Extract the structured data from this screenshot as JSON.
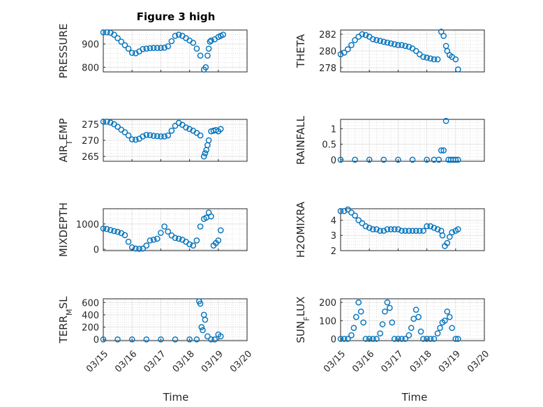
{
  "figure": {
    "title": "Figure 3 high",
    "xlabel": "Time",
    "marker_color": "#0072bd"
  },
  "chart_data": [
    {
      "type": "scatter",
      "ylabel": "PRESSURE",
      "xlim": [
        "03/15",
        "03/20"
      ],
      "ylim": [
        780,
        960
      ],
      "yticks": [
        800,
        900
      ],
      "x": [
        "03/15 00:00",
        "03/15 03:00",
        "03/15 06:00",
        "03/15 09:00",
        "03/15 12:00",
        "03/15 15:00",
        "03/15 18:00",
        "03/15 21:00",
        "03/16 00:00",
        "03/16 03:00",
        "03/16 06:00",
        "03/16 09:00",
        "03/16 12:00",
        "03/16 15:00",
        "03/16 18:00",
        "03/16 21:00",
        "03/17 00:00",
        "03/17 03:00",
        "03/17 06:00",
        "03/17 09:00",
        "03/17 12:00",
        "03/17 15:00",
        "03/17 18:00",
        "03/17 21:00",
        "03/18 00:00",
        "03/18 03:00",
        "03/18 06:00",
        "03/18 09:00",
        "03/18 12:00",
        "03/18 13:30",
        "03/18 15:00",
        "03/18 16:00",
        "03/18 17:00",
        "03/18 18:00",
        "03/18 21:00",
        "03/19 00:00",
        "03/19 02:00",
        "03/19 04:00"
      ],
      "y": [
        950,
        950,
        948,
        940,
        925,
        910,
        895,
        880,
        862,
        860,
        868,
        878,
        880,
        882,
        883,
        883,
        883,
        884,
        890,
        912,
        935,
        940,
        935,
        925,
        915,
        905,
        880,
        850,
        790,
        800,
        850,
        880,
        910,
        915,
        920,
        930,
        935,
        940
      ]
    },
    {
      "type": "scatter",
      "ylabel": "THETA",
      "xlim": [
        "03/15",
        "03/20"
      ],
      "ylim": [
        277.5,
        282.5
      ],
      "yticks": [
        278,
        280,
        282
      ],
      "x": [
        "03/15 00:00",
        "03/15 03:00",
        "03/15 06:00",
        "03/15 09:00",
        "03/15 12:00",
        "03/15 15:00",
        "03/15 18:00",
        "03/15 21:00",
        "03/16 00:00",
        "03/16 03:00",
        "03/16 06:00",
        "03/16 09:00",
        "03/16 12:00",
        "03/16 15:00",
        "03/16 18:00",
        "03/16 21:00",
        "03/17 00:00",
        "03/17 03:00",
        "03/17 06:00",
        "03/17 09:00",
        "03/17 12:00",
        "03/17 15:00",
        "03/17 18:00",
        "03/17 21:00",
        "03/18 00:00",
        "03/18 03:00",
        "03/18 06:00",
        "03/18 09:00",
        "03/18 12:00",
        "03/18 14:00",
        "03/18 16:00",
        "03/18 17:00",
        "03/18 19:00",
        "03/18 21:00",
        "03/19 00:00",
        "03/19 02:00"
      ],
      "y": [
        279.6,
        279.8,
        280.2,
        280.7,
        281.3,
        281.7,
        282.0,
        281.9,
        281.7,
        281.4,
        281.3,
        281.2,
        281.1,
        281.0,
        280.9,
        280.8,
        280.7,
        280.7,
        280.6,
        280.5,
        280.3,
        280.0,
        279.6,
        279.3,
        279.2,
        279.1,
        279.0,
        279.0,
        282.3,
        281.8,
        280.6,
        280.0,
        279.5,
        279.3,
        279.0,
        277.8
      ]
    },
    {
      "type": "scatter",
      "ylabel": "AIR_TEMP",
      "xlim": [
        "03/15",
        "03/20"
      ],
      "ylim": [
        263.5,
        276.5
      ],
      "yticks": [
        265,
        270,
        275
      ],
      "x": [
        "03/15 00:00",
        "03/15 03:00",
        "03/15 06:00",
        "03/15 09:00",
        "03/15 12:00",
        "03/15 15:00",
        "03/15 18:00",
        "03/15 21:00",
        "03/16 00:00",
        "03/16 03:00",
        "03/16 06:00",
        "03/16 09:00",
        "03/16 12:00",
        "03/16 15:00",
        "03/16 18:00",
        "03/16 21:00",
        "03/17 00:00",
        "03/17 03:00",
        "03/17 06:00",
        "03/17 09:00",
        "03/17 12:00",
        "03/17 15:00",
        "03/17 18:00",
        "03/17 21:00",
        "03/18 00:00",
        "03/18 03:00",
        "03/18 06:00",
        "03/18 09:00",
        "03/18 12:00",
        "03/18 13:00",
        "03/18 14:00",
        "03/18 15:00",
        "03/18 16:00",
        "03/18 18:00",
        "03/18 20:00",
        "03/18 22:00",
        "03/19 00:00",
        "03/19 02:00"
      ],
      "y": [
        275.8,
        275.8,
        275.5,
        275.0,
        274.2,
        273.3,
        272.5,
        271.5,
        270.3,
        270.2,
        270.5,
        271.2,
        271.7,
        271.6,
        271.4,
        271.3,
        271.2,
        271.2,
        271.5,
        273.0,
        274.5,
        275.4,
        274.8,
        274.0,
        273.5,
        273.0,
        272.3,
        271.5,
        265.0,
        266.0,
        267.0,
        268.5,
        270.0,
        272.8,
        273.0,
        273.2,
        272.8,
        273.5
      ]
    },
    {
      "type": "scatter",
      "ylabel": "RAINFALL",
      "xlim": [
        "03/15",
        "03/20"
      ],
      "ylim": [
        -0.05,
        1.3
      ],
      "yticks": [
        0,
        0.5,
        1
      ],
      "x": [
        "03/15 00:00",
        "03/15 12:00",
        "03/16 00:00",
        "03/16 12:00",
        "03/17 00:00",
        "03/17 12:00",
        "03/18 00:00",
        "03/18 06:00",
        "03/18 10:00",
        "03/18 12:00",
        "03/18 14:00",
        "03/18 16:00",
        "03/18 18:00",
        "03/18 20:00",
        "03/18 22:00",
        "03/19 00:00",
        "03/19 02:00"
      ],
      "y": [
        0,
        0,
        0,
        0,
        0,
        0,
        0,
        0,
        0,
        0.3,
        0.3,
        1.25,
        0,
        0,
        0,
        0,
        0
      ]
    },
    {
      "type": "scatter",
      "ylabel": "MIXDEPTH",
      "xlim": [
        "03/15",
        "03/20"
      ],
      "ylim": [
        -50,
        1600
      ],
      "yticks": [
        0,
        1000
      ],
      "x": [
        "03/15 00:00",
        "03/15 03:00",
        "03/15 06:00",
        "03/15 09:00",
        "03/15 12:00",
        "03/15 15:00",
        "03/15 18:00",
        "03/15 21:00",
        "03/16 00:00",
        "03/16 03:00",
        "03/16 06:00",
        "03/16 09:00",
        "03/16 12:00",
        "03/16 15:00",
        "03/16 18:00",
        "03/16 21:00",
        "03/17 00:00",
        "03/17 03:00",
        "03/17 06:00",
        "03/17 09:00",
        "03/17 12:00",
        "03/17 15:00",
        "03/17 18:00",
        "03/17 21:00",
        "03/18 00:00",
        "03/18 03:00",
        "03/18 06:00",
        "03/18 09:00",
        "03/18 12:00",
        "03/18 14:00",
        "03/18 16:00",
        "03/18 18:00",
        "03/18 20:00",
        "03/18 22:00",
        "03/19 00:00",
        "03/19 02:00"
      ],
      "y": [
        820,
        800,
        760,
        720,
        690,
        640,
        560,
        300,
        80,
        30,
        20,
        30,
        150,
        350,
        380,
        420,
        650,
        900,
        700,
        550,
        450,
        420,
        380,
        300,
        200,
        150,
        350,
        900,
        1200,
        1250,
        1450,
        1300,
        150,
        250,
        350,
        750
      ]
    },
    {
      "type": "scatter",
      "ylabel": "H2OMIXRA",
      "xlim": [
        "03/15",
        "03/20"
      ],
      "ylim": [
        2,
        4.75
      ],
      "yticks": [
        2,
        3,
        4
      ],
      "x": [
        "03/15 00:00",
        "03/15 03:00",
        "03/15 06:00",
        "03/15 09:00",
        "03/15 12:00",
        "03/15 15:00",
        "03/15 18:00",
        "03/15 21:00",
        "03/16 00:00",
        "03/16 03:00",
        "03/16 06:00",
        "03/16 09:00",
        "03/16 12:00",
        "03/16 15:00",
        "03/16 18:00",
        "03/16 21:00",
        "03/17 00:00",
        "03/17 03:00",
        "03/17 06:00",
        "03/17 09:00",
        "03/17 12:00",
        "03/17 15:00",
        "03/17 18:00",
        "03/17 21:00",
        "03/18 00:00",
        "03/18 03:00",
        "03/18 06:00",
        "03/18 09:00",
        "03/18 12:00",
        "03/18 13:00",
        "03/18 15:00",
        "03/18 17:00",
        "03/18 19:00",
        "03/18 21:00",
        "03/19 00:00",
        "03/19 02:00"
      ],
      "y": [
        4.6,
        4.6,
        4.7,
        4.5,
        4.3,
        4.0,
        3.8,
        3.6,
        3.5,
        3.4,
        3.4,
        3.3,
        3.3,
        3.4,
        3.4,
        3.4,
        3.4,
        3.3,
        3.3,
        3.3,
        3.3,
        3.3,
        3.3,
        3.3,
        3.6,
        3.6,
        3.5,
        3.4,
        3.3,
        3.0,
        2.3,
        2.5,
        2.9,
        3.2,
        3.3,
        3.4
      ]
    },
    {
      "type": "scatter",
      "ylabel": "TERR_MSL",
      "xlim": [
        "03/15",
        "03/20"
      ],
      "ylim": [
        -20,
        660
      ],
      "yticks": [
        0,
        200,
        400,
        600
      ],
      "x": [
        "03/15 00:00",
        "03/15 12:00",
        "03/16 00:00",
        "03/16 12:00",
        "03/17 00:00",
        "03/17 12:00",
        "03/18 00:00",
        "03/18 06:00",
        "03/18 08:00",
        "03/18 09:00",
        "03/18 10:00",
        "03/18 11:00",
        "03/18 12:00",
        "03/18 13:00",
        "03/18 15:00",
        "03/18 18:00",
        "03/18 21:00",
        "03/19 00:00",
        "03/19 02:00"
      ],
      "y": [
        0,
        0,
        0,
        0,
        0,
        0,
        0,
        0,
        620,
        580,
        200,
        150,
        400,
        320,
        50,
        0,
        0,
        80,
        50
      ]
    },
    {
      "type": "scatter",
      "ylabel": "SUN_FLUX",
      "xlim": [
        "03/15",
        "03/20"
      ],
      "ylim": [
        -10,
        220
      ],
      "yticks": [
        0,
        100,
        200
      ],
      "x": [
        "03/15 00:00",
        "03/15 03:00",
        "03/15 06:00",
        "03/15 09:00",
        "03/15 11:00",
        "03/15 13:00",
        "03/15 15:00",
        "03/15 17:00",
        "03/15 19:00",
        "03/15 21:00",
        "03/16 00:00",
        "03/16 03:00",
        "03/16 06:00",
        "03/16 09:00",
        "03/16 11:00",
        "03/16 13:00",
        "03/16 15:00",
        "03/16 17:00",
        "03/16 19:00",
        "03/16 21:00",
        "03/17 00:00",
        "03/17 03:00",
        "03/17 06:00",
        "03/17 09:00",
        "03/17 11:00",
        "03/17 13:00",
        "03/17 15:00",
        "03/17 17:00",
        "03/17 19:00",
        "03/17 21:00",
        "03/18 00:00",
        "03/18 03:00",
        "03/18 06:00",
        "03/18 09:00",
        "03/18 11:00",
        "03/18 13:00",
        "03/18 15:00",
        "03/18 17:00",
        "03/18 19:00",
        "03/18 21:00",
        "03/19 00:00",
        "03/19 02:00"
      ],
      "y": [
        0,
        0,
        0,
        20,
        60,
        120,
        200,
        150,
        90,
        0,
        0,
        0,
        0,
        30,
        80,
        150,
        200,
        170,
        90,
        0,
        0,
        0,
        0,
        20,
        60,
        110,
        160,
        120,
        40,
        0,
        0,
        0,
        0,
        30,
        60,
        90,
        100,
        150,
        120,
        60,
        0,
        0
      ]
    }
  ]
}
